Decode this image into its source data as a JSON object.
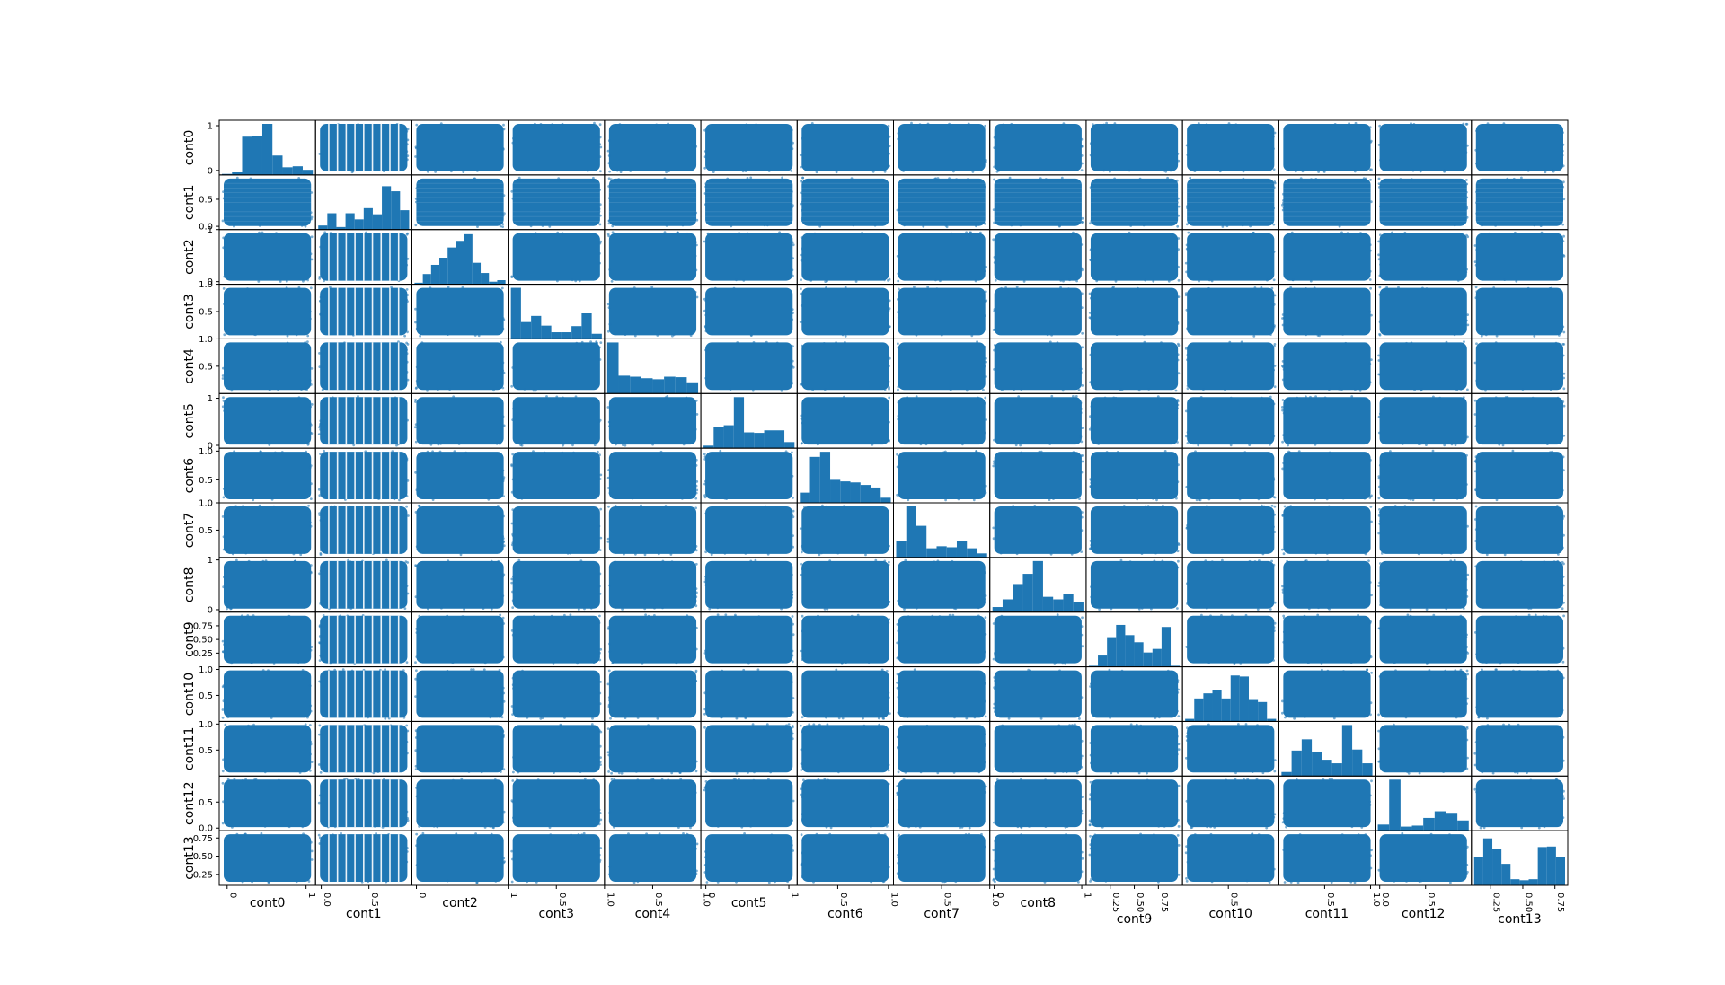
{
  "chart_data": {
    "type": "scatter",
    "matrix": "scatter-matrix",
    "diagonal": "histogram",
    "variables": [
      "cont0",
      "cont1",
      "cont2",
      "cont3",
      "cont4",
      "cont5",
      "cont6",
      "cont7",
      "cont8",
      "cont9",
      "cont10",
      "cont11",
      "cont12",
      "cont13"
    ],
    "color": "#1f77b4",
    "grid": false,
    "legend": "none",
    "ranges": [
      [
        -0.1,
        1.12
      ],
      [
        -0.06,
        0.95
      ],
      [
        -0.05,
        1.0
      ],
      [
        0.0,
        1.0
      ],
      [
        0.0,
        1.0
      ],
      [
        -0.06,
        1.1
      ],
      [
        0.1,
        1.05
      ],
      [
        0.0,
        1.0
      ],
      [
        -0.05,
        1.05
      ],
      [
        0.0,
        1.0
      ],
      [
        0.0,
        1.05
      ],
      [
        0.0,
        1.05
      ],
      [
        -0.05,
        1.0
      ],
      [
        0.1,
        0.85
      ]
    ],
    "y_ticks": [
      {
        "values": [
          0,
          1
        ],
        "labels": [
          "0",
          "1"
        ]
      },
      {
        "values": [
          0.0,
          0.5
        ],
        "labels": [
          "0.0",
          "0.5"
        ]
      },
      {
        "values": [
          0,
          1
        ],
        "labels": [
          "0",
          "1"
        ]
      },
      {
        "values": [
          0.5,
          1.0
        ],
        "labels": [
          "0.5",
          "1.0"
        ]
      },
      {
        "values": [
          0.5,
          1.0
        ],
        "labels": [
          "0.5",
          "1.0"
        ]
      },
      {
        "values": [
          0,
          1
        ],
        "labels": [
          "0",
          "1"
        ]
      },
      {
        "values": [
          0.5,
          1.0
        ],
        "labels": [
          "0.5",
          "1.0"
        ]
      },
      {
        "values": [
          0.5,
          1.0
        ],
        "labels": [
          "0.5",
          "1.0"
        ]
      },
      {
        "values": [
          0,
          1
        ],
        "labels": [
          "0",
          "1"
        ]
      },
      {
        "values": [
          0.25,
          0.5,
          0.75
        ],
        "labels": [
          "0.25",
          "0.50",
          "0.75"
        ]
      },
      {
        "values": [
          0.5,
          1.0
        ],
        "labels": [
          "0.5",
          "1.0"
        ]
      },
      {
        "values": [
          0.5,
          1.0
        ],
        "labels": [
          "0.5",
          "1.0"
        ]
      },
      {
        "values": [
          0.0,
          0.5
        ],
        "labels": [
          "0.0",
          "0.5"
        ]
      },
      {
        "values": [
          0.25,
          0.5,
          0.75
        ],
        "labels": [
          "0.25",
          "0.50",
          "0.75"
        ]
      }
    ],
    "x_ticks": [
      {
        "values": [
          0,
          1
        ],
        "labels": [
          "0",
          "1"
        ]
      },
      {
        "values": [
          0.0,
          0.5
        ],
        "labels": [
          "0.0",
          "0.5"
        ]
      },
      {
        "values": [
          0,
          1
        ],
        "labels": [
          "0",
          "1"
        ]
      },
      {
        "values": [
          0.5,
          1.0
        ],
        "labels": [
          "0.5",
          "1.0"
        ]
      },
      {
        "values": [
          0.5,
          1.0
        ],
        "labels": [
          "0.5",
          "1.0"
        ]
      },
      {
        "values": [
          0,
          1
        ],
        "labels": [
          "0",
          "1"
        ]
      },
      {
        "values": [
          0.5,
          1.0
        ],
        "labels": [
          "0.5",
          "1.0"
        ]
      },
      {
        "values": [
          0.5,
          1.0
        ],
        "labels": [
          "0.5",
          "1.0"
        ]
      },
      {
        "values": [
          0,
          1
        ],
        "labels": [
          "0",
          "1"
        ]
      },
      {
        "values": [
          0.25,
          0.5,
          0.75
        ],
        "labels": [
          "0.25",
          "0.50",
          "0.75"
        ]
      },
      {
        "values": [
          0.5
        ],
        "labels": [
          "0.5"
        ]
      },
      {
        "values": [
          0.5,
          1.0
        ],
        "labels": [
          "0.5",
          "1.0"
        ]
      },
      {
        "values": [
          0.0,
          0.5
        ],
        "labels": [
          "0.0",
          "0.5"
        ]
      },
      {
        "values": [
          0.25,
          0.5,
          0.75
        ],
        "labels": [
          "0.25",
          "0.50",
          "0.75"
        ]
      }
    ],
    "histograms": [
      [
        0.02,
        0.05,
        0.75,
        0.76,
        1.0,
        0.38,
        0.15,
        0.17,
        0.1
      ],
      [
        0.08,
        0.32,
        0.05,
        0.32,
        0.2,
        0.42,
        0.3,
        0.85,
        0.75,
        0.38
      ],
      [
        0.03,
        0.2,
        0.38,
        0.52,
        0.72,
        0.85,
        0.98,
        0.42,
        0.22,
        0.05,
        0.08
      ],
      [
        1.0,
        0.33,
        0.45,
        0.26,
        0.13,
        0.13,
        0.25,
        0.5,
        0.1
      ],
      [
        1.0,
        0.35,
        0.33,
        0.3,
        0.28,
        0.33,
        0.32,
        0.22
      ],
      [
        0.05,
        0.42,
        0.45,
        1.0,
        0.31,
        0.3,
        0.35,
        0.35,
        0.12
      ],
      [
        0.2,
        0.9,
        1.0,
        0.45,
        0.42,
        0.4,
        0.35,
        0.3,
        0.1
      ],
      [
        0.33,
        1.0,
        0.62,
        0.18,
        0.22,
        0.2,
        0.32,
        0.18,
        0.08
      ],
      [
        0.1,
        0.25,
        0.55,
        0.75,
        1.0,
        0.3,
        0.25,
        0.35,
        0.2
      ],
      [
        0.02,
        0.22,
        0.58,
        0.82,
        0.62,
        0.48,
        0.28,
        0.35,
        0.78,
        0.02
      ],
      [
        0.05,
        0.45,
        0.55,
        0.62,
        0.45,
        0.9,
        0.88,
        0.42,
        0.38,
        0.05
      ],
      [
        0.08,
        0.5,
        0.72,
        0.48,
        0.32,
        0.25,
        1.0,
        0.52,
        0.25
      ],
      [
        0.12,
        1.0,
        0.08,
        0.1,
        0.25,
        0.38,
        0.35,
        0.2
      ],
      [
        0.55,
        0.92,
        0.72,
        0.42,
        0.12,
        0.1,
        0.12,
        0.75,
        0.76,
        0.55
      ]
    ]
  }
}
